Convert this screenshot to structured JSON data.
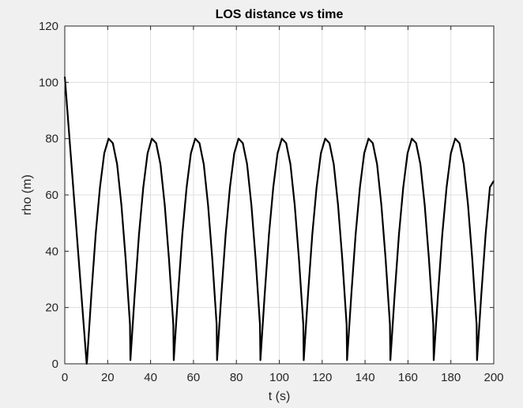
{
  "chart_data": {
    "type": "line",
    "title": "LOS distance vs time",
    "xlabel": "t (s)",
    "ylabel": "rho (m)",
    "xlim": [
      0,
      200
    ],
    "ylim": [
      0,
      120
    ],
    "xticks": [
      "0",
      "20",
      "40",
      "60",
      "80",
      "100",
      "120",
      "140",
      "160",
      "180",
      "200"
    ],
    "yticks": [
      "0",
      "20",
      "40",
      "60",
      "80",
      "100",
      "120"
    ],
    "grid": true,
    "legend": "none",
    "line_color": "#000000",
    "background_color": "#ffffff",
    "figure_color": "#f0f0f0",
    "series": [
      {
        "x": [
          0,
          10.2,
          10.4,
          12.4,
          14.4,
          16.4,
          18.4,
          20.4,
          22.4,
          24.4,
          26.4,
          28.4,
          30.4,
          30.6,
          32.6,
          34.6,
          36.6,
          38.6,
          40.6,
          42.6,
          44.6,
          46.6,
          48.6,
          50.6,
          50.8,
          52.8,
          54.8,
          56.8,
          58.8,
          60.8,
          62.8,
          64.8,
          66.8,
          68.8,
          70.8,
          71.0,
          73.0,
          75.0,
          77.0,
          79.0,
          81.0,
          83.0,
          85.0,
          87.0,
          89.0,
          91.0,
          91.2,
          93.2,
          95.2,
          97.2,
          99.2,
          101.2,
          103.2,
          105.2,
          107.2,
          109.2,
          111.2,
          111.4,
          113.4,
          115.4,
          117.4,
          119.4,
          121.4,
          123.4,
          125.4,
          127.4,
          129.4,
          131.4,
          131.6,
          133.6,
          135.6,
          137.6,
          139.6,
          141.6,
          143.6,
          145.6,
          147.6,
          149.6,
          151.6,
          151.8,
          153.8,
          155.8,
          157.8,
          159.8,
          161.8,
          163.8,
          165.8,
          167.8,
          169.8,
          171.8,
          172.0,
          174.0,
          176.0,
          178.0,
          180.0,
          182.0,
          184.0,
          186.0,
          188.0,
          190.0,
          192.0,
          192.2,
          194.2,
          196.2,
          198.2,
          200.0
        ],
        "y": [
          102,
          0,
          1.3,
          24.7,
          46.0,
          62.7,
          74.8,
          80.0,
          78.4,
          70.9,
          56.4,
          37.0,
          13.9,
          1.3,
          24.7,
          46.0,
          62.7,
          74.8,
          80.0,
          78.4,
          70.9,
          56.4,
          37.0,
          13.9,
          1.3,
          24.7,
          46.0,
          62.7,
          74.8,
          80.0,
          78.4,
          70.9,
          56.4,
          37.0,
          13.9,
          1.3,
          24.7,
          46.0,
          62.7,
          74.8,
          80.0,
          78.4,
          70.9,
          56.4,
          37.0,
          13.9,
          1.3,
          24.7,
          46.0,
          62.7,
          74.8,
          80.0,
          78.4,
          70.9,
          56.4,
          37.0,
          13.9,
          1.3,
          24.7,
          46.0,
          62.7,
          74.8,
          80.0,
          78.4,
          70.9,
          56.4,
          37.0,
          13.9,
          1.3,
          24.7,
          46.0,
          62.7,
          74.8,
          80.0,
          78.4,
          70.9,
          56.4,
          37.0,
          13.9,
          1.3,
          24.7,
          46.0,
          62.7,
          74.8,
          80.0,
          78.4,
          70.9,
          56.4,
          37.0,
          13.9,
          1.3,
          24.7,
          46.0,
          62.7,
          74.8,
          80.0,
          78.4,
          70.9,
          56.4,
          37.0,
          13.9,
          1.3,
          24.7,
          46.0,
          62.7,
          65.0
        ]
      }
    ]
  }
}
